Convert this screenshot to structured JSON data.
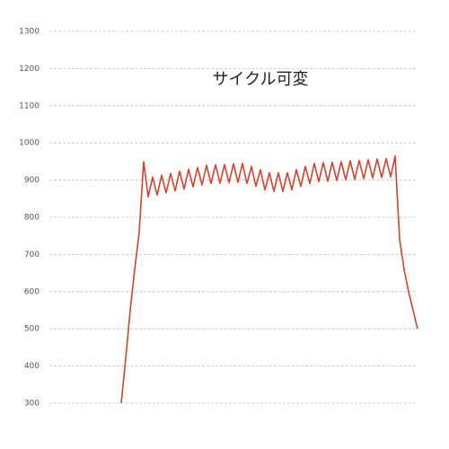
{
  "chart_data": {
    "type": "line",
    "title": "サイクル可変",
    "categories": [
      null,
      null,
      null,
      null,
      null,
      null,
      null,
      null,
      null,
      null,
      null,
      null,
      null,
      null,
      null,
      null,
      null,
      null,
      null,
      null,
      null,
      null,
      null,
      null,
      null,
      null,
      null,
      null,
      null,
      null,
      null,
      null,
      null,
      null,
      null,
      null,
      null,
      null,
      null,
      null,
      null,
      null,
      null,
      null,
      null,
      null,
      null,
      null,
      null,
      null,
      null,
      null,
      null,
      null,
      null,
      null,
      null,
      null,
      null,
      null,
      null,
      null,
      null,
      null,
      null,
      null,
      null,
      null,
      null,
      null,
      null,
      null,
      null,
      null,
      null,
      null,
      null,
      null,
      null,
      null,
      null,
      null,
      null
    ],
    "series": [
      {
        "color": "#d9412b",
        "values": [
          null,
          null,
          null,
          null,
          null,
          null,
          null,
          null,
          null,
          null,
          null,
          null,
          null,
          null,
          null,
          null,
          300,
          420,
          550,
          660,
          760,
          950,
          855,
          908,
          860,
          913,
          866,
          918,
          871,
          924,
          876,
          929,
          882,
          934,
          887,
          940,
          891,
          941,
          892,
          942,
          893,
          944,
          894,
          945,
          891,
          937,
          883,
          928,
          874,
          920,
          870,
          920,
          870,
          920,
          874,
          928,
          883,
          937,
          891,
          945,
          896,
          947,
          897,
          948,
          899,
          950,
          901,
          952,
          902,
          953,
          904,
          955,
          906,
          957,
          907,
          958,
          909,
          965,
          740,
          660,
          600,
          550,
          500
        ]
      }
    ],
    "ylim": [
      300,
      1300
    ],
    "yticks": [
      300,
      400,
      500,
      600,
      700,
      800,
      900,
      1000,
      1100,
      1200,
      1300
    ],
    "grid": true
  }
}
